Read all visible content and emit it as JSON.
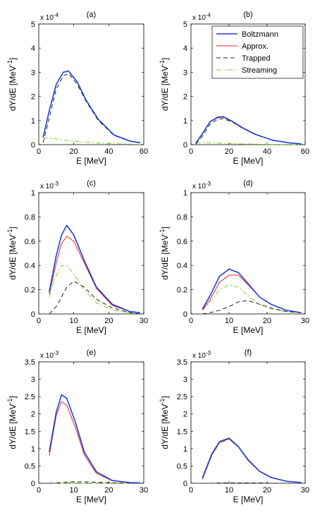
{
  "series_styles": {
    "Boltzmann": {
      "color": "#1f3fd6"
    },
    "Approx.": {
      "color": "#e8262a"
    },
    "Trapped": {
      "color": "#222222"
    },
    "Streaming": {
      "color": "#7ed321"
    }
  },
  "legend_labels": [
    "Boltzmann",
    "Approx.",
    "Trapped",
    "Streaming"
  ],
  "chart_data": [
    {
      "type": "line",
      "panel_label": "(a)",
      "xlabel": "E [MeV]",
      "ylabel": "dY/dE [MeV",
      "ylabel_sup": "-1",
      "ylabel_end": "]",
      "exponent_base": "x 10",
      "exponent_power": "-4",
      "xlim": [
        0,
        60
      ],
      "ylim": [
        0,
        5
      ],
      "xticks": [
        0,
        20,
        40,
        60
      ],
      "yticks": [
        0,
        1,
        2,
        3,
        4,
        5
      ],
      "series": [
        {
          "name": "Boltzmann",
          "x": [
            2.5,
            6,
            10,
            14,
            17,
            22,
            27,
            34,
            43,
            52,
            58
          ],
          "y": [
            0.3,
            1.4,
            2.5,
            3.0,
            3.05,
            2.6,
            1.85,
            1.05,
            0.4,
            0.15,
            0.08
          ]
        },
        {
          "name": "Approx.",
          "x": [
            2.5,
            6,
            10,
            14,
            17,
            22,
            27,
            34,
            43,
            52,
            58
          ],
          "y": [
            0.3,
            1.4,
            2.5,
            3.0,
            3.05,
            2.6,
            1.85,
            1.05,
            0.4,
            0.15,
            0.08
          ]
        },
        {
          "name": "Trapped",
          "x": [
            2.5,
            6,
            10,
            14,
            17,
            22,
            27,
            34,
            43,
            52,
            58
          ],
          "y": [
            0.08,
            1.1,
            2.3,
            2.85,
            2.95,
            2.5,
            1.8,
            1.0,
            0.38,
            0.14,
            0.07
          ]
        },
        {
          "name": "Streaming",
          "x": [
            2.5,
            6,
            10,
            14,
            17,
            22,
            27,
            34,
            43,
            52,
            58
          ],
          "y": [
            0.28,
            0.27,
            0.24,
            0.19,
            0.16,
            0.13,
            0.1,
            0.07,
            0.04,
            0.02,
            0.01
          ]
        }
      ]
    },
    {
      "type": "line",
      "panel_label": "(b)",
      "xlabel": "E [MeV]",
      "ylabel": "dY/dE [MeV",
      "ylabel_sup": "-1",
      "ylabel_end": "]",
      "exponent_base": "x 10",
      "exponent_power": "-4",
      "xlim": [
        0,
        60
      ],
      "ylim": [
        0,
        5
      ],
      "xticks": [
        0,
        20,
        40,
        60
      ],
      "yticks": [
        0,
        1,
        2,
        3,
        4,
        5
      ],
      "legend": "top-right",
      "series": [
        {
          "name": "Boltzmann",
          "x": [
            2.5,
            6,
            10,
            14,
            17,
            22,
            27,
            34,
            43,
            52,
            58
          ],
          "y": [
            0.06,
            0.45,
            0.95,
            1.12,
            1.15,
            0.95,
            0.7,
            0.42,
            0.18,
            0.07,
            0.03
          ]
        },
        {
          "name": "Approx.",
          "x": [
            2.5,
            6,
            10,
            14,
            17,
            22,
            27,
            34,
            43,
            52,
            58
          ],
          "y": [
            0.06,
            0.45,
            0.95,
            1.15,
            1.17,
            0.96,
            0.71,
            0.42,
            0.18,
            0.07,
            0.03
          ]
        },
        {
          "name": "Trapped",
          "x": [
            2.5,
            6,
            10,
            14,
            17,
            22,
            27,
            34,
            43,
            52,
            58
          ],
          "y": [
            0.03,
            0.35,
            0.85,
            1.05,
            1.08,
            0.92,
            0.68,
            0.41,
            0.18,
            0.07,
            0.03
          ]
        },
        {
          "name": "Streaming",
          "x": [
            2.5,
            6,
            10,
            14,
            17,
            22,
            27,
            34,
            43,
            52,
            58
          ],
          "y": [
            0.05,
            0.08,
            0.07,
            0.06,
            0.05,
            0.04,
            0.03,
            0.02,
            0.01,
            0.01,
            0.0
          ]
        }
      ]
    },
    {
      "type": "line",
      "panel_label": "(c)",
      "xlabel": "E [MeV]",
      "ylabel": "dY/dE [MeV",
      "ylabel_sup": "-1",
      "ylabel_end": "]",
      "exponent_base": "x 10",
      "exponent_power": "-3",
      "xlim": [
        0,
        30
      ],
      "ylim": [
        0,
        1
      ],
      "xticks": [
        0,
        10,
        20,
        30
      ],
      "yticks": [
        0,
        0.2,
        0.4,
        0.6,
        0.8,
        1
      ],
      "series": [
        {
          "name": "Boltzmann",
          "x": [
            3,
            5,
            6.5,
            8,
            10,
            13,
            16.5,
            21,
            26,
            29
          ],
          "y": [
            0.18,
            0.48,
            0.65,
            0.73,
            0.65,
            0.44,
            0.22,
            0.08,
            0.02,
            0.01
          ]
        },
        {
          "name": "Approx.",
          "x": [
            3,
            5,
            6.5,
            8,
            10,
            13,
            16.5,
            21,
            26,
            29
          ],
          "y": [
            0.16,
            0.42,
            0.58,
            0.64,
            0.6,
            0.42,
            0.21,
            0.07,
            0.02,
            0.01
          ]
        },
        {
          "name": "Trapped",
          "x": [
            3,
            5,
            6.5,
            8,
            10,
            13,
            16.5,
            21,
            26,
            29
          ],
          "y": [
            0.0,
            0.06,
            0.14,
            0.22,
            0.27,
            0.22,
            0.12,
            0.05,
            0.01,
            0.0
          ]
        },
        {
          "name": "Streaming",
          "x": [
            3,
            5,
            6.5,
            8,
            10,
            13,
            16.5,
            21,
            26,
            29
          ],
          "y": [
            0.14,
            0.32,
            0.4,
            0.4,
            0.33,
            0.2,
            0.09,
            0.03,
            0.01,
            0.0
          ]
        }
      ]
    },
    {
      "type": "line",
      "panel_label": "(d)",
      "xlabel": "E [MeV]",
      "ylabel": "dY/dE [MeV",
      "ylabel_sup": "-1",
      "ylabel_end": "]",
      "exponent_base": "x 10",
      "exponent_power": "-3",
      "xlim": [
        0,
        30
      ],
      "ylim": [
        0,
        1
      ],
      "xticks": [
        0,
        10,
        20,
        30
      ],
      "yticks": [
        0,
        0.2,
        0.4,
        0.6,
        0.8,
        1
      ],
      "series": [
        {
          "name": "Boltzmann",
          "x": [
            3,
            5,
            7.5,
            10,
            12.5,
            15,
            18,
            21,
            25,
            29
          ],
          "y": [
            0.04,
            0.15,
            0.31,
            0.37,
            0.34,
            0.25,
            0.14,
            0.08,
            0.03,
            0.01
          ]
        },
        {
          "name": "Approx.",
          "x": [
            3,
            5,
            7.5,
            10,
            12.5,
            15,
            18,
            21,
            25,
            29
          ],
          "y": [
            0.03,
            0.12,
            0.26,
            0.32,
            0.32,
            0.24,
            0.14,
            0.08,
            0.03,
            0.01
          ]
        },
        {
          "name": "Trapped",
          "x": [
            3,
            5,
            7.5,
            10,
            12.5,
            15,
            18,
            21,
            25,
            29
          ],
          "y": [
            0.0,
            0.01,
            0.03,
            0.06,
            0.1,
            0.11,
            0.08,
            0.05,
            0.02,
            0.01
          ]
        },
        {
          "name": "Streaming",
          "x": [
            3,
            5,
            7.5,
            10,
            12.5,
            15,
            18,
            21,
            25,
            29
          ],
          "y": [
            0.03,
            0.1,
            0.2,
            0.24,
            0.22,
            0.15,
            0.08,
            0.04,
            0.02,
            0.01
          ]
        }
      ]
    },
    {
      "type": "line",
      "panel_label": "(e)",
      "xlabel": "E [MeV]",
      "ylabel": "dY/dE [MeV",
      "ylabel_sup": "-1",
      "ylabel_end": "]",
      "exponent_base": "x 10",
      "exponent_power": "-3",
      "xlim": [
        0,
        30
      ],
      "ylim": [
        0,
        3.5
      ],
      "xticks": [
        0,
        10,
        20,
        30
      ],
      "yticks": [
        0,
        0.5,
        1,
        1.5,
        2,
        2.5,
        3,
        3.5
      ],
      "series": [
        {
          "name": "Boltzmann",
          "x": [
            3,
            5,
            6.5,
            8,
            10.5,
            13,
            16.5,
            21,
            26,
            29
          ],
          "y": [
            0.9,
            2.05,
            2.55,
            2.45,
            1.75,
            0.9,
            0.33,
            0.08,
            0.02,
            0.01
          ]
        },
        {
          "name": "Approx.",
          "x": [
            3,
            5,
            6.5,
            8,
            10.5,
            13,
            16.5,
            21,
            26,
            29
          ],
          "y": [
            0.8,
            1.95,
            2.35,
            2.25,
            1.6,
            0.82,
            0.28,
            0.07,
            0.02,
            0.01
          ]
        },
        {
          "name": "Trapped",
          "x": [
            3,
            5,
            6.5,
            8,
            10.5,
            13,
            16.5,
            21,
            26,
            29
          ],
          "y": [
            0.0,
            0.01,
            0.02,
            0.03,
            0.04,
            0.04,
            0.03,
            0.01,
            0.0,
            0.0
          ]
        },
        {
          "name": "Streaming",
          "x": [
            3,
            5,
            6.5,
            8,
            10.5,
            13,
            16.5,
            21,
            26,
            29
          ],
          "y": [
            0.0,
            0.0,
            0.0,
            0.0,
            0.0,
            0.0,
            0.0,
            0.0,
            0.0,
            0.0
          ]
        }
      ]
    },
    {
      "type": "line",
      "panel_label": "(f)",
      "xlabel": "E [MeV]",
      "ylabel": "dY/dE [MeV",
      "ylabel_sup": "-1",
      "ylabel_end": "]",
      "exponent_base": "x 10",
      "exponent_power": "-3",
      "xlim": [
        0,
        30
      ],
      "ylim": [
        0,
        3.5
      ],
      "xticks": [
        0,
        10,
        20,
        30
      ],
      "yticks": [
        0,
        0.5,
        1,
        1.5,
        2,
        2.5,
        3,
        3.5
      ],
      "series": [
        {
          "name": "Boltzmann",
          "x": [
            3,
            5.5,
            7.5,
            10,
            12.5,
            15,
            18,
            21,
            25,
            29
          ],
          "y": [
            0.15,
            0.85,
            1.2,
            1.3,
            1.05,
            0.68,
            0.35,
            0.17,
            0.06,
            0.02
          ]
        },
        {
          "name": "Approx.",
          "x": [
            3,
            5.5,
            7.5,
            10,
            12.5,
            15,
            18,
            21,
            25,
            29
          ],
          "y": [
            0.12,
            0.82,
            1.18,
            1.28,
            1.04,
            0.66,
            0.34,
            0.16,
            0.06,
            0.02
          ]
        },
        {
          "name": "Trapped",
          "x": [
            3,
            5.5,
            7.5,
            10,
            12.5,
            15,
            18,
            21,
            25,
            29
          ],
          "y": [
            0.0,
            0.0,
            0.01,
            0.01,
            0.01,
            0.01,
            0.01,
            0.0,
            0.0,
            0.0
          ]
        },
        {
          "name": "Streaming",
          "x": [
            3,
            5.5,
            7.5,
            10,
            12.5,
            15,
            18,
            21,
            25,
            29
          ],
          "y": [
            0.1,
            0.8,
            1.15,
            1.27,
            1.03,
            0.66,
            0.34,
            0.16,
            0.06,
            0.02
          ]
        }
      ]
    }
  ]
}
